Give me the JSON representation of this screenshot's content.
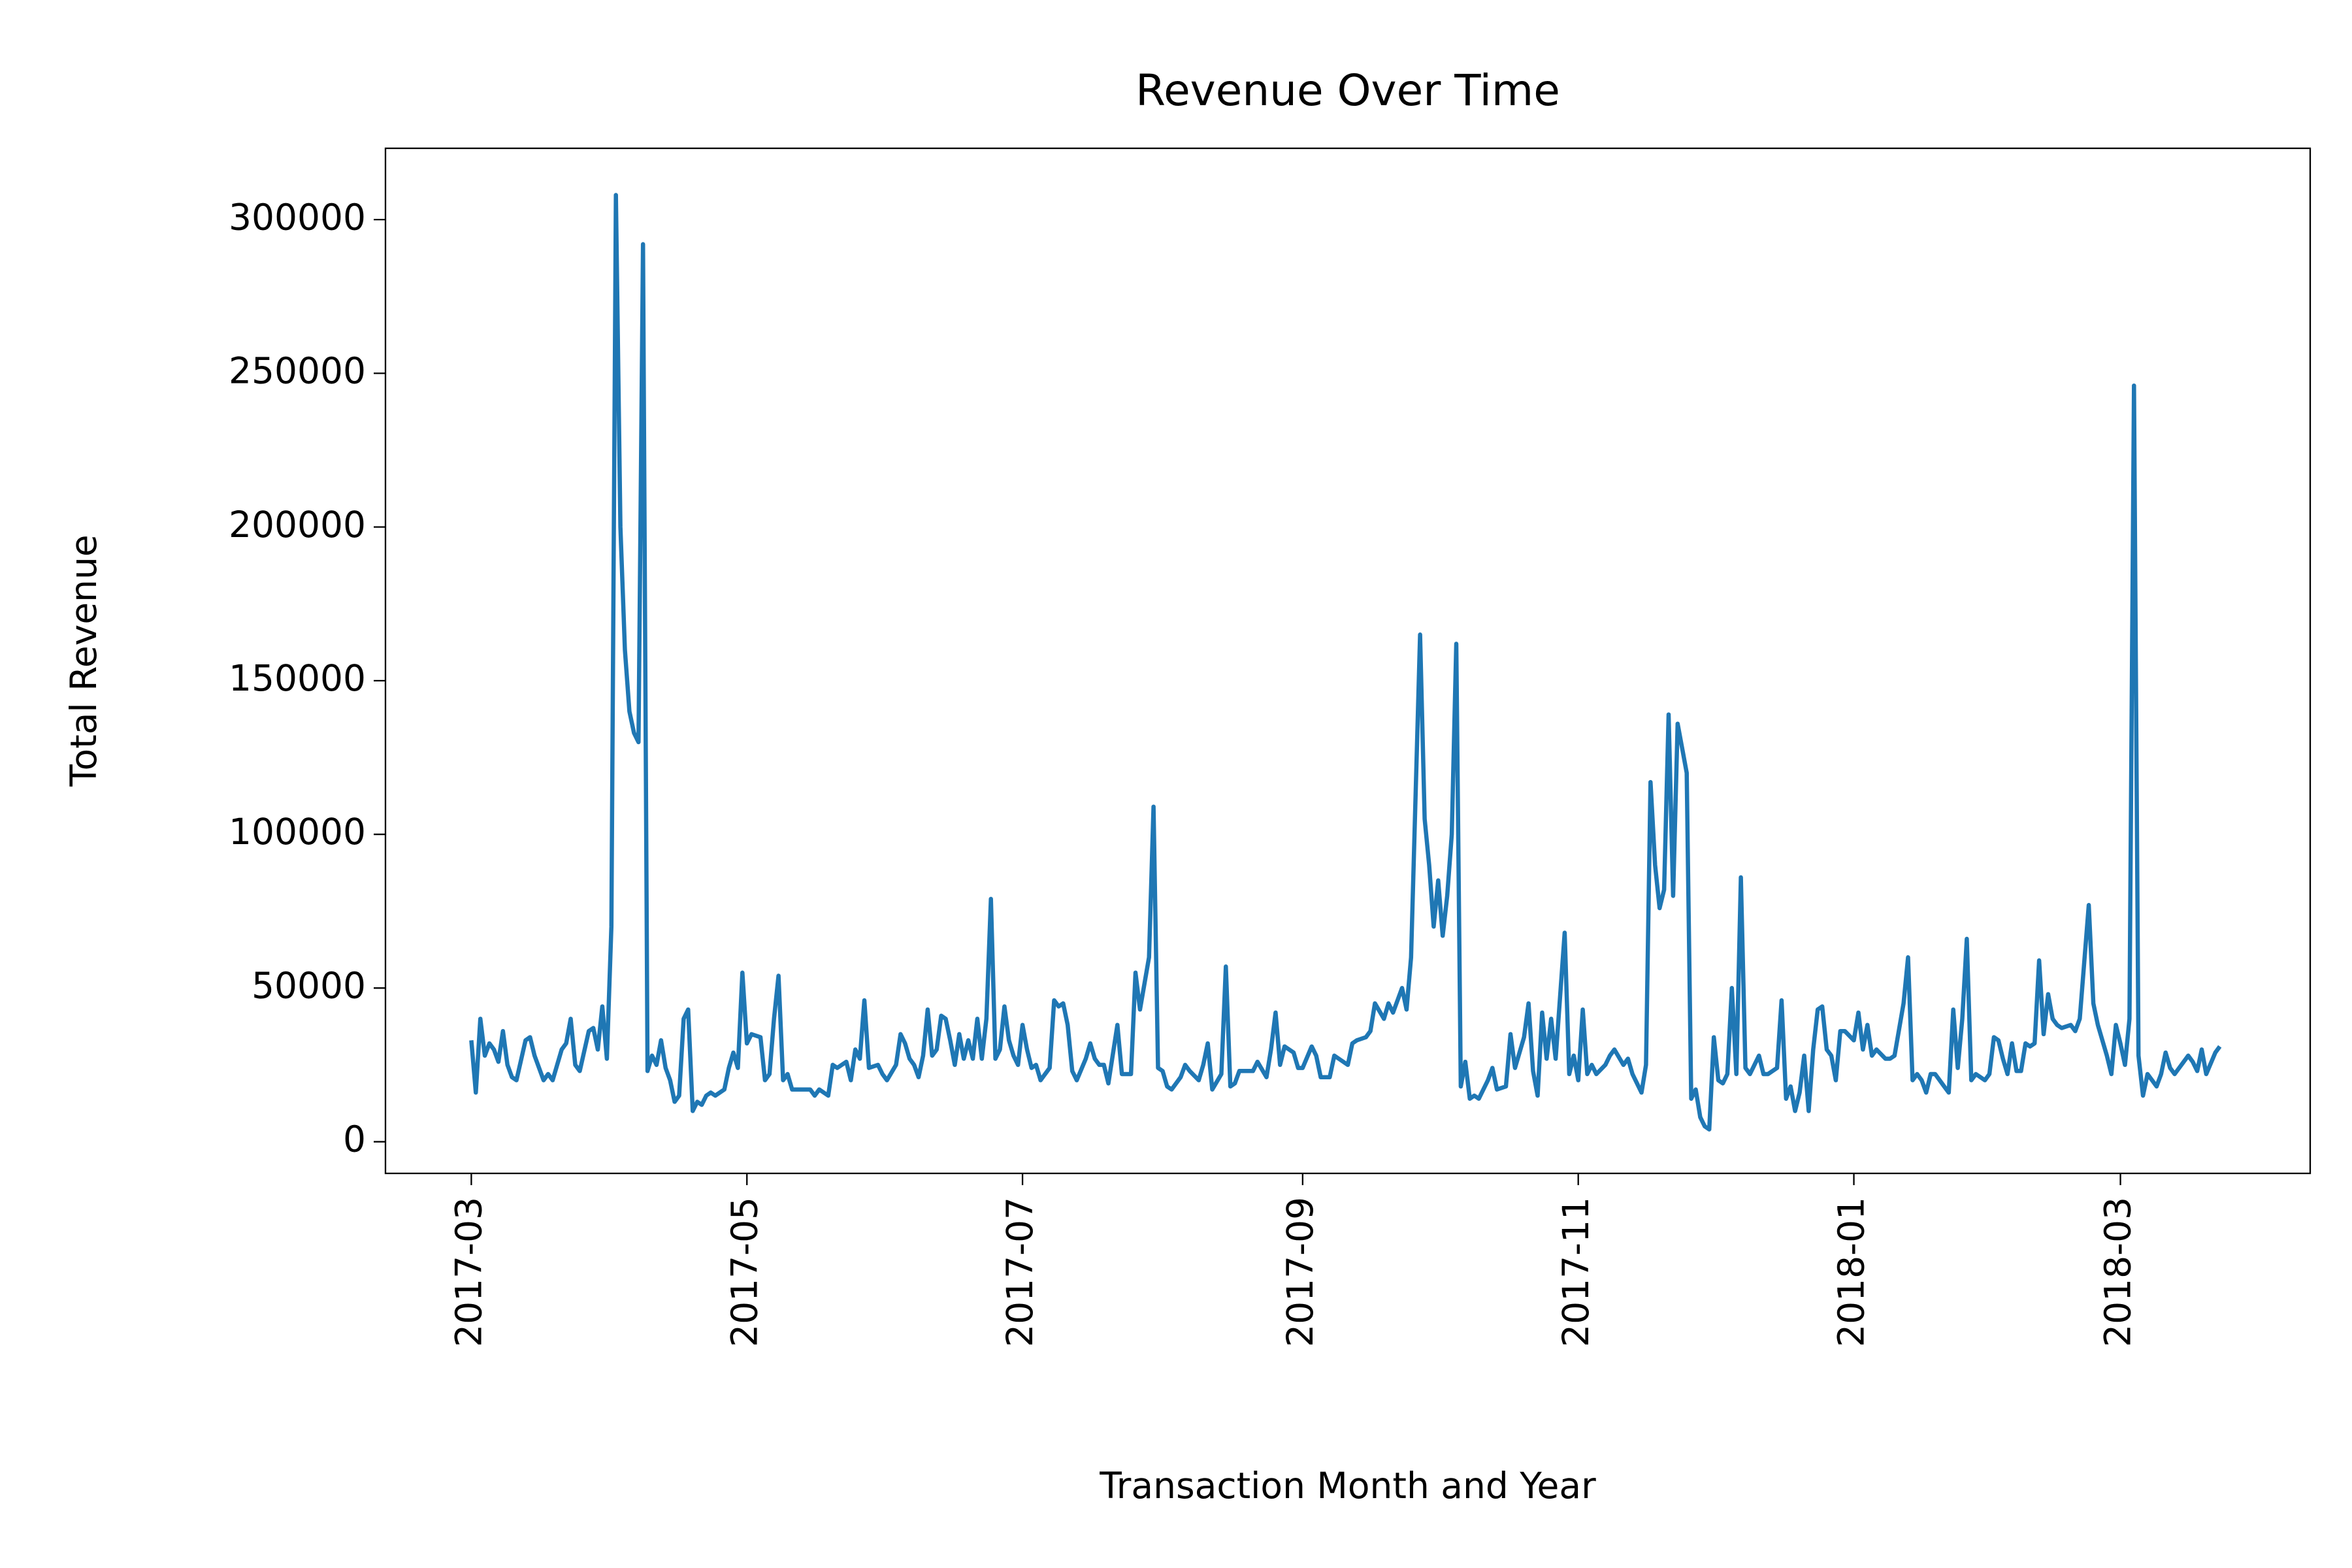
{
  "chart_data": {
    "type": "line",
    "title": "Revenue Over Time",
    "xlabel": "Transaction Month and Year",
    "ylabel": "Total Revenue",
    "x": [
      0,
      1,
      2,
      3,
      4,
      5,
      6,
      7,
      8,
      9,
      10,
      12,
      13,
      14,
      16,
      17,
      18,
      20,
      21,
      22,
      23,
      24,
      26,
      27,
      28,
      29,
      30,
      31,
      32,
      33,
      34,
      35,
      36,
      37,
      38,
      39,
      40,
      41,
      42,
      43,
      44,
      45,
      46,
      47,
      48,
      49,
      50,
      51,
      52,
      53,
      54,
      56,
      57,
      58,
      59,
      60,
      61,
      62,
      64,
      65,
      66,
      67,
      68,
      69,
      70,
      71,
      72,
      73,
      75,
      76,
      77,
      79,
      80,
      81,
      83,
      84,
      85,
      86,
      87,
      88,
      90,
      91,
      92,
      94,
      95,
      96,
      97,
      98,
      99,
      100,
      101,
      102,
      103,
      104,
      105,
      106,
      107,
      108,
      109,
      110,
      111,
      112,
      113,
      114,
      115,
      116,
      117,
      118,
      119,
      120,
      121,
      122,
      123,
      124,
      125,
      126,
      128,
      129,
      130,
      131,
      132,
      133,
      134,
      136,
      137,
      138,
      139,
      140,
      141,
      143,
      144,
      145,
      146,
      147,
      148,
      150,
      151,
      152,
      153,
      154,
      155,
      157,
      158,
      159,
      161,
      162,
      163,
      164,
      166,
      167,
      168,
      169,
      170,
      172,
      173,
      174,
      176,
      177,
      178,
      179,
      180,
      182,
      183,
      184,
      186,
      187,
      188,
      190,
      191,
      192,
      194,
      195,
      196,
      198,
      199,
      200,
      202,
      203,
      204,
      206,
      207,
      208,
      210,
      211,
      212,
      213,
      214,
      215,
      216,
      217,
      218,
      219,
      220,
      221,
      222,
      223,
      225,
      226,
      227,
      229,
      230,
      231,
      233,
      234,
      235,
      236,
      237,
      238,
      239,
      240,
      242,
      243,
      244,
      245,
      246,
      247,
      248,
      249,
      251,
      252,
      253,
      255,
      256,
      257,
      259,
      260,
      261,
      262,
      263,
      264,
      265,
      266,
      267,
      269,
      270,
      271,
      272,
      273,
      274,
      275,
      276,
      277,
      278,
      279,
      280,
      281,
      282,
      283,
      285,
      286,
      287,
      289,
      290,
      291,
      292,
      293,
      294,
      295,
      296,
      297,
      298,
      299,
      300,
      301,
      302,
      303,
      304,
      306,
      307,
      308,
      309,
      310,
      311,
      313,
      314,
      315,
      317,
      318,
      319,
      320,
      321,
      322,
      323,
      324,
      326,
      327,
      328,
      329,
      330,
      331,
      332,
      333,
      334,
      335,
      336,
      337,
      338,
      339,
      340,
      341,
      342,
      343,
      344,
      345,
      346,
      347,
      348,
      349,
      350,
      351,
      352,
      354,
      355,
      356,
      358,
      359,
      360,
      362,
      363,
      364,
      365,
      366,
      367,
      368,
      369,
      370,
      371,
      372,
      373,
      374,
      375,
      376,
      377,
      379,
      380,
      381,
      382,
      383,
      384,
      386,
      387
    ],
    "values": [
      33000,
      16000,
      40000,
      28000,
      32000,
      30000,
      26000,
      36000,
      25000,
      21000,
      20000,
      33000,
      34000,
      28000,
      20000,
      22000,
      20000,
      30000,
      32000,
      40000,
      25000,
      23000,
      36000,
      37000,
      30000,
      44000,
      27000,
      70000,
      308000,
      200000,
      160000,
      140000,
      133000,
      130000,
      292000,
      23000,
      28000,
      25000,
      33000,
      24000,
      20000,
      13000,
      15000,
      40000,
      43000,
      10000,
      13000,
      12000,
      15000,
      16000,
      15000,
      17000,
      24000,
      29000,
      24000,
      55000,
      32000,
      35000,
      34000,
      20000,
      22000,
      40000,
      54000,
      20000,
      22000,
      17000,
      17000,
      17000,
      17000,
      15000,
      17000,
      15000,
      25000,
      24000,
      26000,
      20000,
      30000,
      27000,
      46000,
      24000,
      25000,
      22000,
      20000,
      25000,
      35000,
      32000,
      27000,
      25000,
      21000,
      28000,
      43000,
      28000,
      30000,
      41000,
      40000,
      33000,
      25000,
      35000,
      27000,
      33000,
      27000,
      40000,
      27000,
      40000,
      79000,
      27000,
      30000,
      44000,
      33000,
      28000,
      25000,
      38000,
      30000,
      24000,
      25000,
      20000,
      24000,
      46000,
      44000,
      45000,
      38000,
      23000,
      20000,
      27000,
      32000,
      27000,
      25000,
      25000,
      19000,
      38000,
      22000,
      22000,
      22000,
      55000,
      43000,
      60000,
      109000,
      24000,
      23000,
      18000,
      17000,
      21000,
      25000,
      23000,
      20000,
      25000,
      32000,
      17000,
      22000,
      57000,
      18000,
      19000,
      23000,
      23000,
      23000,
      26000,
      21000,
      30000,
      42000,
      25000,
      31000,
      29000,
      24000,
      24000,
      31000,
      28000,
      21000,
      21000,
      28000,
      27000,
      25000,
      32000,
      33000,
      34000,
      36000,
      45000,
      40000,
      45000,
      42000,
      50000,
      43000,
      60000,
      165000,
      105000,
      90000,
      70000,
      85000,
      67000,
      80000,
      100000,
      162000,
      18000,
      26000,
      14000,
      15000,
      14000,
      20000,
      24000,
      17000,
      18000,
      35000,
      24000,
      34000,
      45000,
      23000,
      15000,
      42000,
      27000,
      40000,
      27000,
      68000,
      22000,
      28000,
      20000,
      43000,
      22000,
      25000,
      22000,
      25000,
      28000,
      30000,
      25000,
      27000,
      22000,
      16000,
      25000,
      117000,
      90000,
      76000,
      82000,
      139000,
      80000,
      136000,
      120000,
      14000,
      17000,
      8000,
      5000,
      4000,
      34000,
      20000,
      19000,
      22000,
      50000,
      22000,
      86000,
      24000,
      22000,
      28000,
      22000,
      22000,
      24000,
      46000,
      14000,
      18000,
      10000,
      16000,
      28000,
      10000,
      30000,
      43000,
      44000,
      30000,
      28000,
      20000,
      36000,
      36000,
      33000,
      42000,
      30000,
      38000,
      28000,
      30000,
      27000,
      27000,
      28000,
      45000,
      60000,
      20000,
      22000,
      20000,
      16000,
      22000,
      22000,
      18000,
      16000,
      43000,
      24000,
      40000,
      66000,
      20000,
      22000,
      21000,
      20000,
      22000,
      34000,
      33000,
      27000,
      22000,
      32000,
      23000,
      23000,
      32000,
      31000,
      32000,
      59000,
      35000,
      48000,
      40000,
      38000,
      37000,
      38000,
      36000,
      40000,
      77000,
      45000,
      38000,
      28000,
      22000,
      38000,
      32000,
      25000,
      40000,
      246000,
      28000,
      15000,
      22000,
      20000,
      18000,
      22000,
      29000,
      24000,
      22000,
      26000,
      28000,
      26000,
      23000,
      30000,
      22000,
      29000,
      31000
    ],
    "color": "#1f77b4",
    "xlim": [
      -19,
      407
    ],
    "xticks": [
      {
        "value": 0,
        "label": "2017-03"
      },
      {
        "value": 61,
        "label": "2017-05"
      },
      {
        "value": 122,
        "label": "2017-07"
      },
      {
        "value": 184,
        "label": "2017-09"
      },
      {
        "value": 245,
        "label": "2017-11"
      },
      {
        "value": 306,
        "label": "2018-01"
      },
      {
        "value": 365,
        "label": "2018-03"
      }
    ],
    "ylim": [
      -10300,
      323200
    ],
    "yticks": [
      0,
      50000,
      100000,
      150000,
      200000,
      250000,
      300000
    ],
    "grid": false
  }
}
